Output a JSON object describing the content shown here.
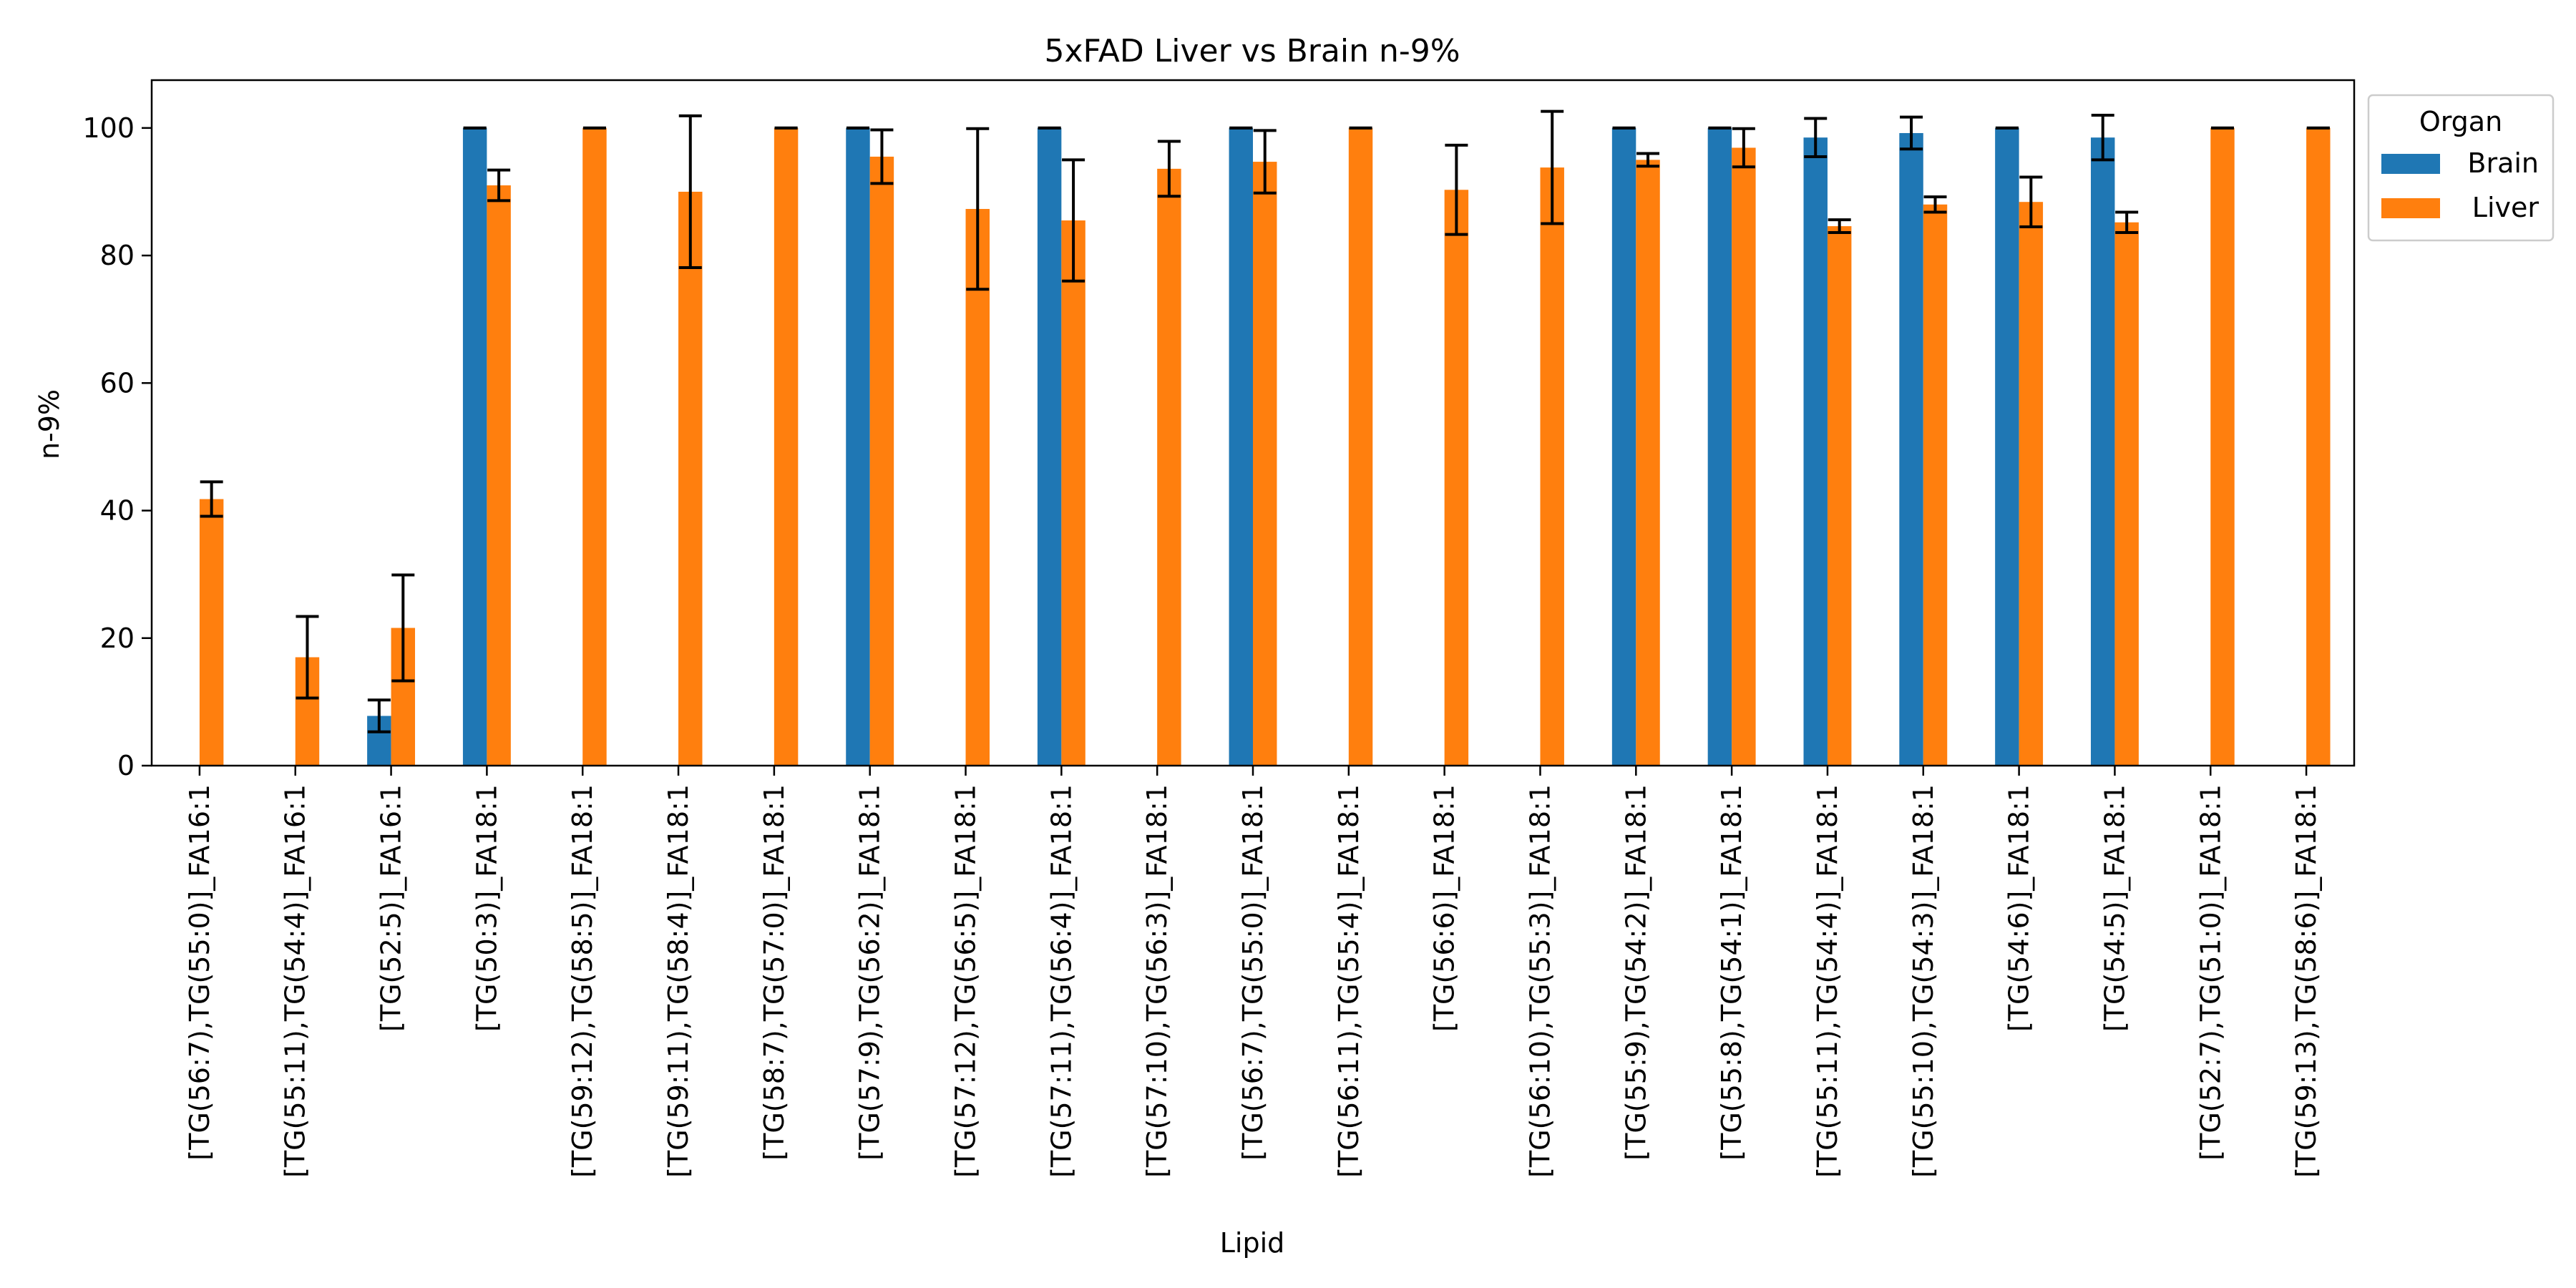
{
  "chart_data": {
    "type": "bar",
    "title": "5xFAD Liver vs Brain n-9%",
    "xlabel": "Lipid",
    "ylabel": "n-9%",
    "ylim": [
      0,
      107.5
    ],
    "yticks": [
      0,
      20,
      40,
      60,
      80,
      100
    ],
    "grid": false,
    "legend": {
      "title": "Organ",
      "placement": "outside top-right"
    },
    "categories": [
      "[TG(56:7),TG(55:0)]_FA16:1",
      "[TG(55:11),TG(54:4)]_FA16:1",
      "[TG(52:5)]_FA16:1",
      "[TG(50:3)]_FA18:1",
      "[TG(59:12),TG(58:5)]_FA18:1",
      "[TG(59:11),TG(58:4)]_FA18:1",
      "[TG(58:7),TG(57:0)]_FA18:1",
      "[TG(57:9),TG(56:2)]_FA18:1",
      "[TG(57:12),TG(56:5)]_FA18:1",
      "[TG(57:11),TG(56:4)]_FA18:1",
      "[TG(57:10),TG(56:3)]_FA18:1",
      "[TG(56:7),TG(55:0)]_FA18:1",
      "[TG(56:11),TG(55:4)]_FA18:1",
      "[TG(56:6)]_FA18:1",
      "[TG(56:10),TG(55:3)]_FA18:1",
      "[TG(55:9),TG(54:2)]_FA18:1",
      "[TG(55:8),TG(54:1)]_FA18:1",
      "[TG(55:11),TG(54:4)]_FA18:1",
      "[TG(55:10),TG(54:3)]_FA18:1",
      "[TG(54:6)]_FA18:1",
      "[TG(54:5)]_FA18:1",
      "[TG(52:7),TG(51:0)]_FA18:1",
      "[TG(59:13),TG(58:6)]_FA18:1"
    ],
    "series": [
      {
        "name": "Brain",
        "color": "#1f77b4",
        "values": [
          null,
          null,
          7.8,
          100,
          null,
          null,
          null,
          100,
          null,
          100,
          null,
          100,
          null,
          null,
          null,
          100,
          100,
          98.5,
          99.2,
          100,
          98.5,
          null,
          null
        ],
        "errors": [
          null,
          null,
          2.5,
          0,
          null,
          null,
          null,
          0,
          null,
          0,
          null,
          0,
          null,
          null,
          null,
          0,
          0,
          3.0,
          2.5,
          0,
          3.5,
          null,
          null
        ]
      },
      {
        "name": "Liver",
        "color": "#ff7f0e",
        "values": [
          41.8,
          17.0,
          21.6,
          91.0,
          100,
          90.0,
          100,
          95.5,
          87.3,
          85.5,
          93.6,
          94.7,
          100,
          90.3,
          93.8,
          95.0,
          96.9,
          84.6,
          88.0,
          88.4,
          85.2,
          100,
          100
        ],
        "errors": [
          2.7,
          6.4,
          8.3,
          2.4,
          0,
          11.9,
          0,
          4.2,
          12.6,
          9.5,
          4.3,
          4.9,
          0,
          7.0,
          8.8,
          1.0,
          3.0,
          1.0,
          1.2,
          3.9,
          1.6,
          0,
          0
        ]
      }
    ]
  }
}
